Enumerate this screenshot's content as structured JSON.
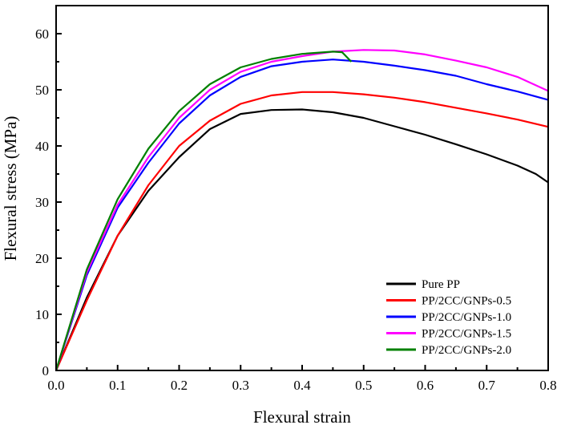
{
  "chart_data": {
    "type": "line",
    "title": "",
    "xlabel": "Flexural strain",
    "ylabel": "Flexural stress (MPa)",
    "xlim": [
      0,
      0.8
    ],
    "ylim": [
      0,
      65
    ],
    "xticks": [
      "0.0",
      "0.1",
      "0.2",
      "0.3",
      "0.4",
      "0.5",
      "0.6",
      "0.7",
      "0.8"
    ],
    "yticks": [
      "0",
      "10",
      "20",
      "30",
      "40",
      "50",
      "60"
    ],
    "grid": false,
    "legend_position": "bottom-right",
    "series": [
      {
        "name": "Pure PP",
        "color": "#000000",
        "x": [
          0,
          0.05,
          0.1,
          0.15,
          0.2,
          0.25,
          0.3,
          0.35,
          0.4,
          0.45,
          0.5,
          0.55,
          0.6,
          0.65,
          0.7,
          0.75,
          0.78,
          0.8
        ],
        "y": [
          0,
          13,
          24,
          32,
          38,
          43,
          45.7,
          46.4,
          46.5,
          46,
          45,
          43.5,
          42,
          40.3,
          38.5,
          36.5,
          35,
          33.5
        ]
      },
      {
        "name": "PP/2CC/GNPs-0.5",
        "color": "#ff0000",
        "x": [
          0,
          0.05,
          0.1,
          0.15,
          0.2,
          0.25,
          0.3,
          0.35,
          0.4,
          0.45,
          0.5,
          0.55,
          0.6,
          0.65,
          0.7,
          0.75,
          0.8
        ],
        "y": [
          0,
          12.5,
          24,
          33,
          40,
          44.5,
          47.5,
          49,
          49.6,
          49.6,
          49.2,
          48.6,
          47.8,
          46.8,
          45.8,
          44.7,
          43.4
        ]
      },
      {
        "name": "PP/2CC/GNPs-1.0",
        "color": "#0000ff",
        "x": [
          0,
          0.05,
          0.1,
          0.15,
          0.2,
          0.25,
          0.3,
          0.35,
          0.4,
          0.45,
          0.5,
          0.55,
          0.6,
          0.65,
          0.7,
          0.75,
          0.8
        ],
        "y": [
          0,
          17,
          29,
          37,
          44,
          49,
          52.3,
          54.2,
          55,
          55.4,
          55,
          54.3,
          53.5,
          52.5,
          51,
          49.7,
          48.2
        ]
      },
      {
        "name": "PP/2CC/GNPs-1.5",
        "color": "#ff00ff",
        "x": [
          0,
          0.05,
          0.1,
          0.15,
          0.2,
          0.25,
          0.3,
          0.35,
          0.4,
          0.45,
          0.5,
          0.55,
          0.6,
          0.65,
          0.7,
          0.75,
          0.8
        ],
        "y": [
          0,
          17.5,
          29.5,
          38,
          45,
          50,
          53.2,
          55,
          56,
          56.8,
          57.1,
          57,
          56.3,
          55.2,
          54,
          52.3,
          49.8
        ]
      },
      {
        "name": "PP/2CC/GNPs-2.0",
        "color": "#008000",
        "x": [
          0,
          0.05,
          0.1,
          0.15,
          0.2,
          0.25,
          0.3,
          0.35,
          0.4,
          0.45,
          0.465,
          0.48
        ],
        "y": [
          0,
          18,
          30.5,
          39.5,
          46.2,
          51,
          54,
          55.5,
          56.4,
          56.8,
          56.7,
          55
        ]
      }
    ]
  }
}
